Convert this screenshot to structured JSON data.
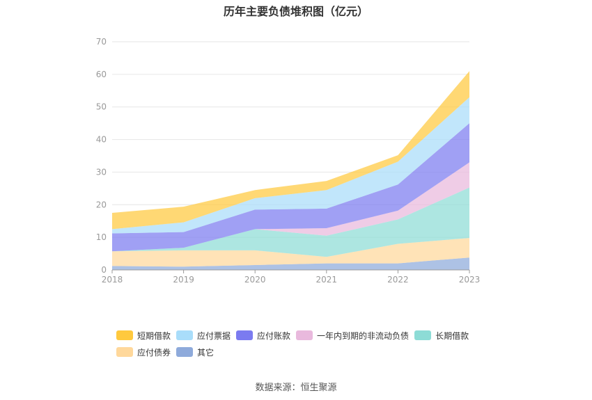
{
  "chart_data": {
    "type": "area",
    "stacked": true,
    "title": "历年主要负债堆积图（亿元）",
    "x": [
      "2018",
      "2019",
      "2020",
      "2021",
      "2022",
      "2023"
    ],
    "ylim": [
      0,
      70
    ],
    "yticks": [
      0,
      10,
      20,
      30,
      40,
      50,
      60,
      70
    ],
    "grid": true,
    "legend_position": "bottom",
    "series": [
      {
        "name": "其它",
        "color": "#8eaadb",
        "values": [
          1.2,
          1.0,
          1.5,
          2.0,
          2.0,
          3.8
        ]
      },
      {
        "name": "应付债券",
        "color": "#ffd89b",
        "values": [
          4.5,
          5.0,
          4.5,
          2.0,
          6.0,
          6.0
        ]
      },
      {
        "name": "长期借款",
        "color": "#8ddcd6",
        "values": [
          0,
          0.8,
          6.5,
          6.5,
          7.5,
          15.5
        ]
      },
      {
        "name": "一年内到期的非流动负债",
        "color": "#e9b9dd",
        "values": [
          0,
          0,
          0,
          2.3,
          2.7,
          7.7
        ]
      },
      {
        "name": "应付账款",
        "color": "#7b7bf0",
        "values": [
          5.5,
          4.8,
          6.0,
          6.0,
          8.0,
          12.0
        ]
      },
      {
        "name": "应付票据",
        "color": "#a9ddfa",
        "values": [
          1.3,
          3.0,
          3.5,
          5.7,
          7.0,
          8.0
        ]
      },
      {
        "name": "短期借款",
        "color": "#ffc93e",
        "values": [
          5.0,
          4.8,
          2.5,
          2.8,
          2.0,
          8.0
        ]
      }
    ],
    "legend_order": [
      "短期借款",
      "应付票据",
      "应付账款",
      "一年内到期的非流动负债",
      "长期借款",
      "应付债券",
      "其它"
    ],
    "source": "数据来源：恒生聚源"
  }
}
